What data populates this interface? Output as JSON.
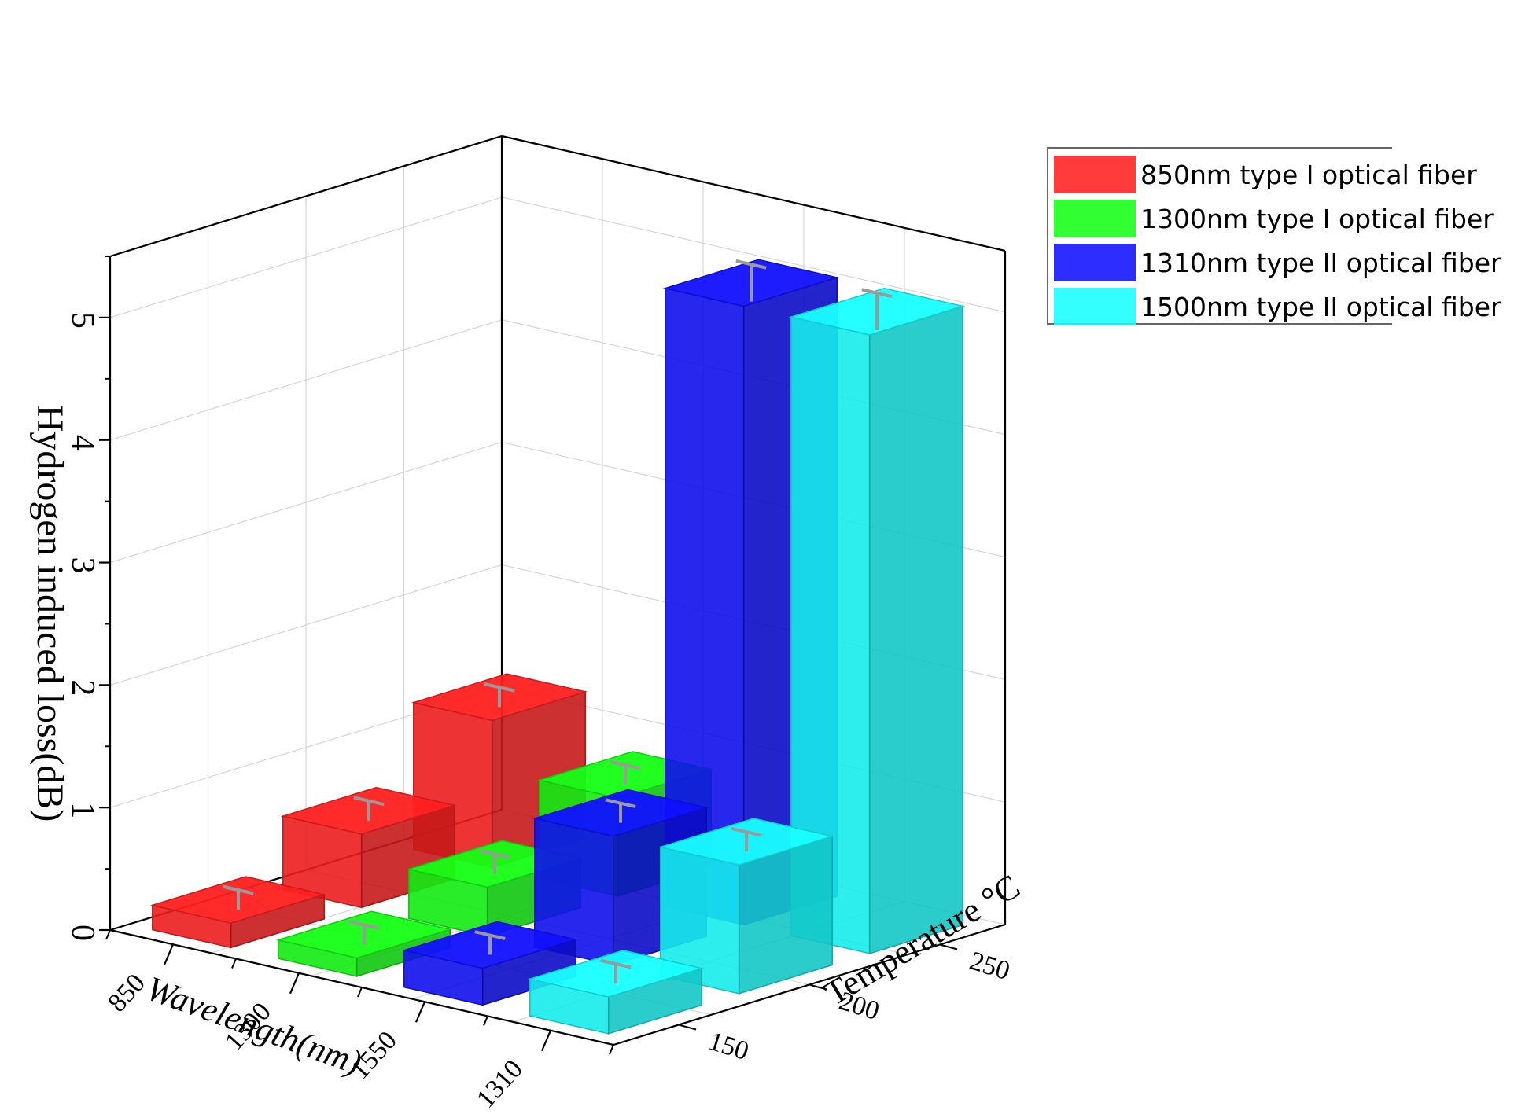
{
  "chart_data": {
    "type": "bar",
    "title": "",
    "ylabel": "Hydrogen induced loss(dB)",
    "xlabel": "Wavelength(nm)",
    "zlabel": "Temperature °C",
    "ylim": [
      0,
      5.5
    ],
    "yticks": [
      "0",
      "1",
      "2",
      "3",
      "4",
      "5"
    ],
    "wavelength_categories": [
      "850",
      "1300",
      "1550",
      "1310"
    ],
    "temperature_categories": [
      "150",
      "200",
      "250"
    ],
    "grid": true,
    "legend_position": "top-right",
    "series": [
      {
        "name": "850nm  type I optical fiber",
        "color": "#ff2020",
        "values": {
          "150": 0.2,
          "200": 0.6,
          "250": 1.2
        }
      },
      {
        "name": "1300nm type I optical fiber",
        "color": "#14ff14",
        "values": {
          "150": 0.15,
          "200": 0.4,
          "250": 0.8
        }
      },
      {
        "name": "1310nm type II optical fiber",
        "color": "#1010ff",
        "values": {
          "150": 0.3,
          "200": 1.05,
          "250": 5.05
        }
      },
      {
        "name": "1500nm type II optical fiber",
        "color": "#18ffff",
        "values": {
          "150": 0.3,
          "200": 1.05,
          "250": 5.05
        }
      }
    ]
  }
}
